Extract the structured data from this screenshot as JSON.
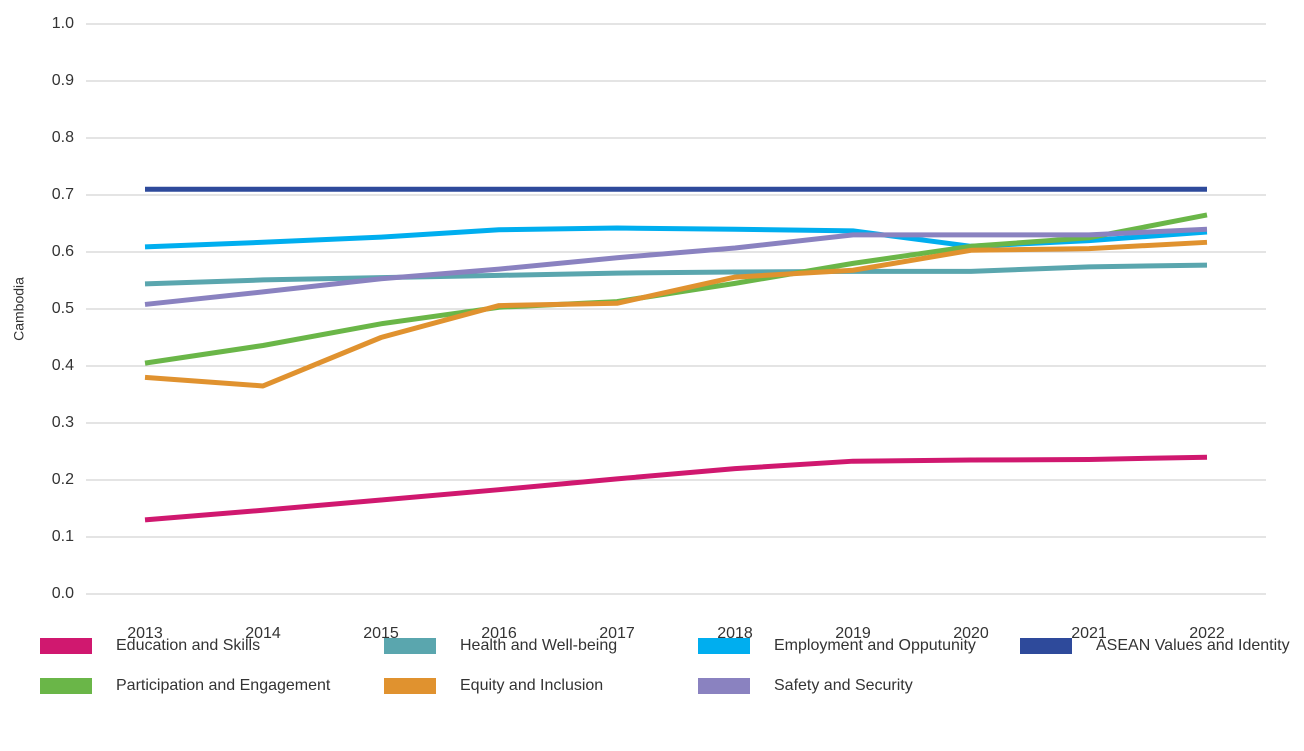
{
  "chart_data": {
    "type": "line",
    "y_label": "Cambodia",
    "categories": [
      "2013",
      "2014",
      "2015",
      "2016",
      "2017",
      "2018",
      "2019",
      "2020",
      "2021",
      "2022"
    ],
    "ylim": [
      0,
      1
    ],
    "yticks": [
      {
        "value": 0,
        "label": "0.0"
      },
      0.1,
      0.2,
      0.3,
      0.4,
      0.5,
      0.6,
      0.7,
      0.8,
      0.9,
      {
        "value": 1,
        "label": "1.0"
      }
    ],
    "grid": true,
    "series": [
      {
        "name": "Education and Skills",
        "color": "#d0186f",
        "values": [
          0.13,
          0.147,
          0.165,
          0.183,
          0.202,
          0.22,
          0.233,
          0.235,
          0.236,
          0.24
        ]
      },
      {
        "name": "Health and Well-being",
        "color": "#5aa6ae",
        "values": [
          0.544,
          0.551,
          0.555,
          0.559,
          0.563,
          0.565,
          0.566,
          0.566,
          0.574,
          0.577
        ]
      },
      {
        "name": "Employment and Opputunity",
        "color": "#00aeef",
        "values": [
          0.609,
          0.617,
          0.626,
          0.639,
          0.642,
          0.64,
          0.637,
          0.61,
          0.62,
          0.635
        ]
      },
      {
        "name": "ASEAN Values and Identity",
        "color": "#2e4a9b",
        "values": [
          0.71,
          0.71,
          0.71,
          0.71,
          0.71,
          0.71,
          0.71,
          0.71,
          0.71,
          0.71
        ]
      },
      {
        "name": "Participation and Engagement",
        "color": "#6ab648",
        "values": [
          0.405,
          0.436,
          0.474,
          0.503,
          0.513,
          0.545,
          0.58,
          0.61,
          0.625,
          0.665
        ]
      },
      {
        "name": "Equity and Inclusion",
        "color": "#e0922f",
        "values": [
          0.38,
          0.365,
          0.45,
          0.506,
          0.51,
          0.556,
          0.568,
          0.603,
          0.606,
          0.617
        ]
      },
      {
        "name": "Safety and Security",
        "color": "#8a82c0",
        "values": [
          0.508,
          0.53,
          0.553,
          0.57,
          0.59,
          0.607,
          0.63,
          0.63,
          0.63,
          0.64
        ]
      }
    ]
  }
}
